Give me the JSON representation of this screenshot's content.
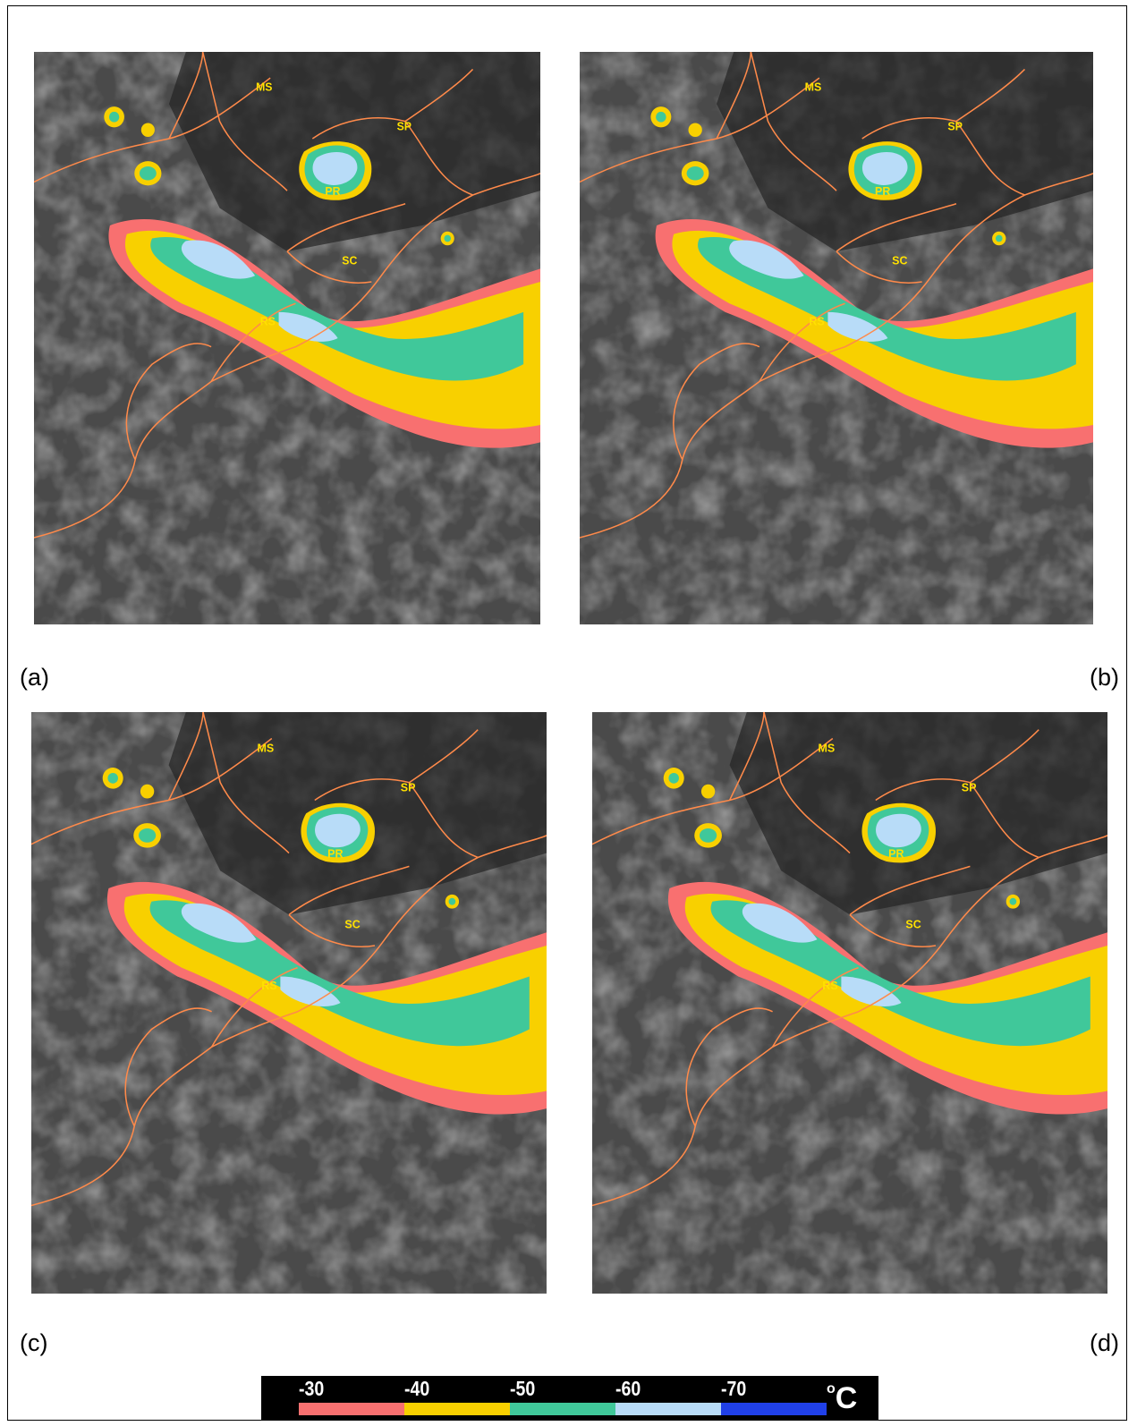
{
  "panels": [
    {
      "id": "a",
      "label": "(a)"
    },
    {
      "id": "b",
      "label": "(b)"
    },
    {
      "id": "c",
      "label": "(c)"
    },
    {
      "id": "d",
      "label": "(d)"
    }
  ],
  "map_labels": {
    "ms": "MS",
    "sp": "SP",
    "pr": "PR",
    "sc": "SC",
    "rs": "RS"
  },
  "colorbar": {
    "ticks": [
      "-30",
      "-40",
      "-50",
      "-60",
      "-70"
    ],
    "unit_degree": "o",
    "unit_letter": "C",
    "colors": [
      "#f87070",
      "#f8d000",
      "#40c89a",
      "#b8dcf8",
      "#2040e8"
    ]
  },
  "colors": {
    "border_lines": "#ff8a4a",
    "state_labels": "#ffe000",
    "background_grey": "#4d4d4d"
  }
}
